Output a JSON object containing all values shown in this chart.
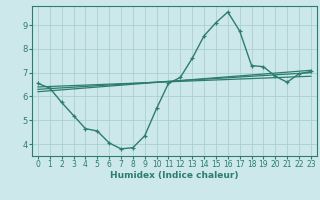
{
  "xlabel": "Humidex (Indice chaleur)",
  "bg_color": "#cce8ea",
  "line_color": "#2d7d6e",
  "grid_color": "#aacfd4",
  "xlim": [
    -0.5,
    23.5
  ],
  "ylim": [
    3.5,
    9.8
  ],
  "xticks": [
    0,
    1,
    2,
    3,
    4,
    5,
    6,
    7,
    8,
    9,
    10,
    11,
    12,
    13,
    14,
    15,
    16,
    17,
    18,
    19,
    20,
    21,
    22,
    23
  ],
  "yticks": [
    4,
    5,
    6,
    7,
    8,
    9
  ],
  "main_series": {
    "x": [
      0,
      1,
      2,
      3,
      4,
      5,
      6,
      7,
      8,
      9,
      10,
      11,
      12,
      13,
      14,
      15,
      16,
      17,
      18,
      19,
      20,
      21,
      22,
      23
    ],
    "y": [
      6.55,
      6.35,
      5.75,
      5.2,
      4.65,
      4.55,
      4.05,
      3.8,
      3.85,
      4.35,
      5.5,
      6.55,
      6.8,
      7.6,
      8.55,
      9.1,
      9.55,
      8.75,
      7.3,
      7.25,
      6.85,
      6.6,
      6.95,
      7.05
    ]
  },
  "trend_lines": [
    {
      "x": [
        0,
        23
      ],
      "y": [
        6.4,
        6.85
      ]
    },
    {
      "x": [
        0,
        23
      ],
      "y": [
        6.3,
        7.0
      ]
    },
    {
      "x": [
        0,
        23
      ],
      "y": [
        6.2,
        7.1
      ]
    }
  ]
}
